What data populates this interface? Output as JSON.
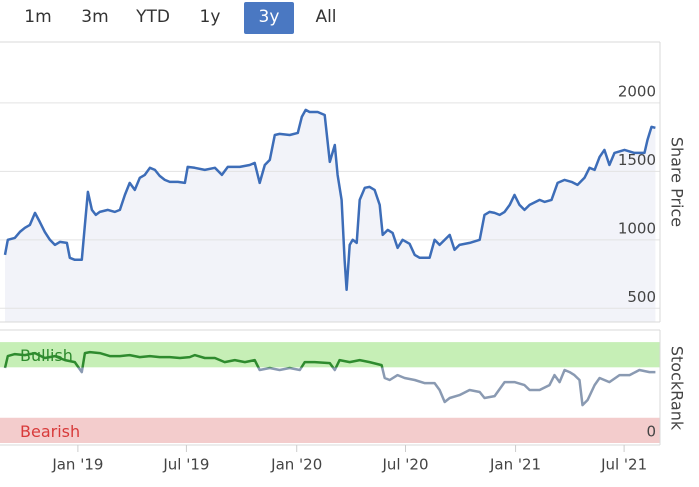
{
  "buttons": [
    "1m",
    "3m",
    "YTD",
    "1y",
    "3y",
    "All"
  ],
  "selected": "3y",
  "chart_data": [
    {
      "type": "line",
      "axis_title": "Share Price",
      "color": "#3d6db8",
      "area_color": "#f2f3f9",
      "xlim": [
        2018.667,
        2021.66
      ],
      "ylim": [
        400,
        2445
      ],
      "yticks": [
        500,
        1000,
        1500,
        2000
      ],
      "grid": true,
      "x": [
        2018.667,
        2018.68,
        2018.712,
        2018.735,
        2018.758,
        2018.781,
        2018.804,
        2018.826,
        2018.849,
        2018.872,
        2018.895,
        2018.918,
        2018.95,
        2018.963,
        2018.986,
        2019.018,
        2019.032,
        2019.046,
        2019.064,
        2019.082,
        2019.1,
        2019.137,
        2019.169,
        2019.192,
        2019.215,
        2019.237,
        2019.26,
        2019.283,
        2019.306,
        2019.329,
        2019.352,
        2019.374,
        2019.397,
        2019.42,
        2019.457,
        2019.489,
        2019.502,
        2019.534,
        2019.58,
        2019.626,
        2019.658,
        2019.685,
        2019.74,
        2019.785,
        2019.808,
        2019.831,
        2019.854,
        2019.877,
        2019.9,
        2019.922,
        2019.968,
        2020.005,
        2020.023,
        2020.041,
        2020.059,
        2020.096,
        2020.128,
        2020.151,
        2020.174,
        2020.187,
        2020.205,
        2020.219,
        2020.228,
        2020.242,
        2020.256,
        2020.274,
        2020.288,
        2020.311,
        2020.333,
        2020.356,
        2020.379,
        2020.393,
        2020.416,
        2020.438,
        2020.461,
        2020.484,
        2020.516,
        2020.539,
        2020.562,
        2020.607,
        2020.63,
        2020.653,
        2020.699,
        2020.721,
        2020.744,
        2020.79,
        2020.836,
        2020.858,
        2020.881,
        2020.904,
        2020.927,
        2020.95,
        2020.973,
        2020.995,
        2021.018,
        2021.041,
        2021.064,
        2021.11,
        2021.132,
        2021.164,
        2021.192,
        2021.224,
        2021.256,
        2021.283,
        2021.315,
        2021.338,
        2021.361,
        2021.384,
        2021.406,
        2021.429,
        2021.452,
        2021.498,
        2021.543,
        2021.589,
        2021.603,
        2021.621,
        2021.639
      ],
      "values": [
        890,
        1000,
        1014,
        1058,
        1088,
        1109,
        1197,
        1131,
        1058,
        1000,
        963,
        985,
        978,
        869,
        854,
        854,
        1109,
        1350,
        1219,
        1182,
        1204,
        1219,
        1204,
        1219,
        1328,
        1416,
        1365,
        1453,
        1474,
        1526,
        1511,
        1467,
        1438,
        1423,
        1423,
        1416,
        1533,
        1526,
        1511,
        1526,
        1474,
        1533,
        1533,
        1547,
        1562,
        1416,
        1547,
        1584,
        1766,
        1774,
        1766,
        1781,
        1898,
        1949,
        1934,
        1934,
        1912,
        1569,
        1693,
        1474,
        1292,
        854,
        635,
        963,
        1000,
        978,
        1292,
        1380,
        1387,
        1365,
        1255,
        1036,
        1073,
        1051,
        941,
        1000,
        971,
        890,
        869,
        869,
        1000,
        963,
        1036,
        927,
        963,
        978,
        1000,
        1182,
        1204,
        1197,
        1182,
        1204,
        1255,
        1328,
        1255,
        1219,
        1255,
        1292,
        1277,
        1292,
        1416,
        1438,
        1423,
        1401,
        1453,
        1526,
        1511,
        1606,
        1657,
        1547,
        1635,
        1657,
        1635,
        1635,
        1730,
        1825,
        1818
      ]
    },
    {
      "type": "line",
      "axis_title": "StockRank",
      "color": "#8a9ab2",
      "bullish_color": "#2e8b2e",
      "xlim": [
        2018.667,
        2021.66
      ],
      "ylim": [
        -2,
        112
      ],
      "yticks": [
        0
      ],
      "bands": [
        {
          "label": "Bullish",
          "from": 75,
          "to": 100,
          "color": "#c6efb6",
          "text_color": "#2e8b2e"
        },
        {
          "label": "Bearish",
          "from": 0,
          "to": 25,
          "color": "#f3cccc",
          "text_color": "#d83a3a"
        }
      ],
      "xticks": [
        {
          "value": 2019,
          "label": "Jan '19"
        },
        {
          "value": 2019.496,
          "label": "Jul '19"
        },
        {
          "value": 2020,
          "label": "Jan '20"
        },
        {
          "value": 2020.497,
          "label": "Jul '20"
        },
        {
          "value": 2021,
          "label": "Jan '21"
        },
        {
          "value": 2021.496,
          "label": "Jul '21"
        }
      ],
      "x": [
        2018.667,
        2018.68,
        2018.712,
        2018.758,
        2018.804,
        2018.849,
        2018.895,
        2018.941,
        2018.986,
        2019.018,
        2019.032,
        2019.055,
        2019.1,
        2019.146,
        2019.192,
        2019.237,
        2019.283,
        2019.329,
        2019.374,
        2019.42,
        2019.466,
        2019.511,
        2019.534,
        2019.58,
        2019.626,
        2019.671,
        2019.717,
        2019.763,
        2019.808,
        2019.831,
        2019.877,
        2019.922,
        2019.968,
        2020.014,
        2020.037,
        2020.082,
        2020.151,
        2020.174,
        2020.196,
        2020.242,
        2020.288,
        2020.333,
        2020.388,
        2020.402,
        2020.425,
        2020.461,
        2020.493,
        2020.539,
        2020.584,
        2020.63,
        2020.653,
        2020.676,
        2020.699,
        2020.744,
        2020.79,
        2020.836,
        2020.858,
        2020.904,
        2020.95,
        2020.995,
        2021.041,
        2021.064,
        2021.11,
        2021.155,
        2021.178,
        2021.201,
        2021.224,
        2021.247,
        2021.269,
        2021.292,
        2021.306,
        2021.329,
        2021.361,
        2021.384,
        2021.429,
        2021.475,
        2021.521,
        2021.566,
        2021.612,
        2021.639
      ],
      "values": [
        74.3,
        86.1,
        88.1,
        87.1,
        89.1,
        84.2,
        86.1,
        82.2,
        80.2,
        70.3,
        89.1,
        90.1,
        89.1,
        86.1,
        86.1,
        87.1,
        85.1,
        86.1,
        85.1,
        85.1,
        84.2,
        85.1,
        87.1,
        84.2,
        84.2,
        80.2,
        82.2,
        80.2,
        82.2,
        72.3,
        74.3,
        72.3,
        74.3,
        72.3,
        80.2,
        80.2,
        79.2,
        72.3,
        82.2,
        80.2,
        82.2,
        80.2,
        77.2,
        64.4,
        62.4,
        67.3,
        64.4,
        62.4,
        59.4,
        59.4,
        52.5,
        40.6,
        44.6,
        47.5,
        52.5,
        50.5,
        44.6,
        46.5,
        60.4,
        60.4,
        57.4,
        52.5,
        52.5,
        57.4,
        67.3,
        60.4,
        72.3,
        70.3,
        67.3,
        62.4,
        37.6,
        42.6,
        57.4,
        64.4,
        60.4,
        67.3,
        67.3,
        72.3,
        70.3,
        70.3
      ]
    }
  ]
}
